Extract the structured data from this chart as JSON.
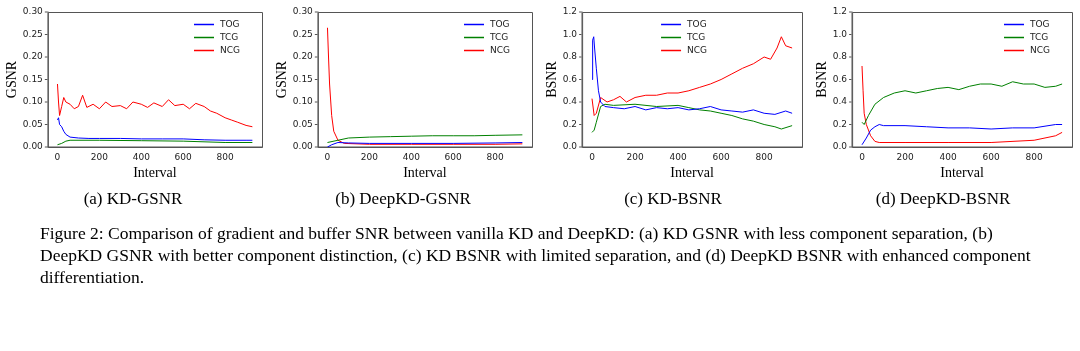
{
  "chart_data": [
    {
      "type": "line",
      "title": "(a) KD-GSNR",
      "xlabel": "Interval",
      "ylabel": "GSNR",
      "xlim": [
        -46,
        976
      ],
      "xticks": [
        0,
        200,
        400,
        600,
        800
      ],
      "ylim": [
        0,
        0.3
      ],
      "yticks": [
        {
          "value": 0,
          "label": "0.00"
        },
        {
          "value": 0.05,
          "label": "0.05"
        },
        {
          "value": 0.1,
          "label": "0.10"
        },
        {
          "value": 0.15,
          "label": "0.15"
        },
        {
          "value": 0.2,
          "label": "0.20"
        },
        {
          "value": 0.25,
          "label": "0.25"
        },
        {
          "value": 0.3,
          "label": "0.30"
        }
      ],
      "legend": "top right",
      "grid": false,
      "marker": "none",
      "line_style": "solid",
      "series": [
        {
          "name": "TOG",
          "color": "#0000ff",
          "x": [
            0,
            5,
            10,
            20,
            30,
            40,
            60,
            100,
            150,
            200,
            300,
            400,
            500,
            600,
            700,
            800,
            900,
            930
          ],
          "values": [
            0.06,
            0.065,
            0.05,
            0.045,
            0.035,
            0.028,
            0.022,
            0.02,
            0.019,
            0.019,
            0.019,
            0.018,
            0.018,
            0.018,
            0.016,
            0.015,
            0.015,
            0.015
          ]
        },
        {
          "name": "TCG",
          "color": "#008000",
          "x": [
            0,
            20,
            40,
            60,
            200,
            400,
            600,
            800,
            930
          ],
          "values": [
            0.005,
            0.008,
            0.013,
            0.015,
            0.015,
            0.014,
            0.013,
            0.01,
            0.01
          ]
        },
        {
          "name": "NCG",
          "color": "#ff0000",
          "x": [
            0,
            5,
            10,
            20,
            30,
            40,
            60,
            80,
            100,
            120,
            140,
            170,
            200,
            230,
            260,
            300,
            330,
            360,
            400,
            430,
            460,
            500,
            530,
            560,
            600,
            630,
            660,
            700,
            730,
            760,
            800,
            830,
            860,
            900,
            930
          ],
          "values": [
            0.14,
            0.1,
            0.07,
            0.09,
            0.11,
            0.1,
            0.095,
            0.085,
            0.09,
            0.115,
            0.088,
            0.095,
            0.085,
            0.1,
            0.09,
            0.092,
            0.085,
            0.1,
            0.095,
            0.088,
            0.098,
            0.09,
            0.105,
            0.092,
            0.095,
            0.085,
            0.097,
            0.09,
            0.08,
            0.075,
            0.065,
            0.06,
            0.055,
            0.048,
            0.045
          ]
        }
      ]
    },
    {
      "type": "line",
      "title": "(b) DeepKD-GSNR",
      "xlabel": "Interval",
      "ylabel": "GSNR",
      "xlim": [
        -46,
        976
      ],
      "xticks": [
        0,
        200,
        400,
        600,
        800
      ],
      "ylim": [
        0,
        0.3
      ],
      "yticks": [
        {
          "value": 0,
          "label": "0.00"
        },
        {
          "value": 0.05,
          "label": "0.05"
        },
        {
          "value": 0.1,
          "label": "0.10"
        },
        {
          "value": 0.15,
          "label": "0.15"
        },
        {
          "value": 0.2,
          "label": "0.20"
        },
        {
          "value": 0.25,
          "label": "0.25"
        },
        {
          "value": 0.3,
          "label": "0.30"
        }
      ],
      "legend": "top right",
      "grid": false,
      "marker": "none",
      "line_style": "solid",
      "series": [
        {
          "name": "TOG",
          "color": "#0000ff",
          "x": [
            0,
            20,
            50,
            100,
            200,
            400,
            600,
            800,
            930
          ],
          "values": [
            0,
            0.005,
            0.01,
            0.009,
            0.008,
            0.008,
            0.008,
            0.009,
            0.01
          ]
        },
        {
          "name": "TCG",
          "color": "#008000",
          "x": [
            0,
            50,
            100,
            200,
            300,
            400,
            500,
            600,
            700,
            800,
            930
          ],
          "values": [
            0.01,
            0.015,
            0.02,
            0.022,
            0.023,
            0.024,
            0.025,
            0.025,
            0.025,
            0.026,
            0.027
          ]
        },
        {
          "name": "NCG",
          "color": "#ff0000",
          "x": [
            0,
            5,
            10,
            20,
            30,
            50,
            80,
            200,
            400,
            600,
            800,
            930
          ],
          "values": [
            0.265,
            0.2,
            0.14,
            0.07,
            0.035,
            0.015,
            0.008,
            0.006,
            0.006,
            0.006,
            0.006,
            0.007
          ]
        }
      ]
    },
    {
      "type": "line",
      "title": "(c) KD-BSNR",
      "xlabel": "Interval",
      "ylabel": "BSNR",
      "xlim": [
        -46,
        976
      ],
      "xticks": [
        0,
        200,
        400,
        600,
        800
      ],
      "ylim": [
        0,
        1.2
      ],
      "yticks": [
        {
          "value": 0,
          "label": "0.0"
        },
        {
          "value": 0.2,
          "label": "0.2"
        },
        {
          "value": 0.4,
          "label": "0.4"
        },
        {
          "value": 0.6,
          "label": "0.6"
        },
        {
          "value": 0.8,
          "label": "0.8"
        },
        {
          "value": 1,
          "label": "1.0"
        },
        {
          "value": 1.2,
          "label": "1.2"
        }
      ],
      "legend": "top",
      "grid": false,
      "marker": "none",
      "line_style": "solid",
      "series": [
        {
          "name": "TOG",
          "color": "#0000ff",
          "x": [
            0,
            3,
            8,
            12,
            20,
            30,
            40,
            60,
            100,
            150,
            200,
            250,
            300,
            350,
            400,
            450,
            500,
            550,
            600,
            650,
            700,
            750,
            800,
            850,
            900,
            930
          ],
          "values": [
            0.6,
            0.95,
            0.98,
            0.88,
            0.7,
            0.5,
            0.4,
            0.36,
            0.35,
            0.34,
            0.36,
            0.33,
            0.35,
            0.34,
            0.35,
            0.33,
            0.34,
            0.36,
            0.33,
            0.32,
            0.31,
            0.33,
            0.3,
            0.29,
            0.32,
            0.3
          ]
        },
        {
          "name": "TCG",
          "color": "#008000",
          "x": [
            0,
            10,
            20,
            40,
            60,
            100,
            200,
            300,
            400,
            450,
            500,
            550,
            600,
            650,
            700,
            750,
            800,
            850,
            880,
            930
          ],
          "values": [
            0.13,
            0.15,
            0.22,
            0.36,
            0.38,
            0.37,
            0.38,
            0.36,
            0.37,
            0.35,
            0.33,
            0.32,
            0.3,
            0.28,
            0.25,
            0.23,
            0.2,
            0.18,
            0.16,
            0.19
          ]
        },
        {
          "name": "NCG",
          "color": "#ff0000",
          "x": [
            0,
            10,
            20,
            40,
            70,
            100,
            130,
            160,
            200,
            250,
            300,
            350,
            400,
            450,
            500,
            550,
            600,
            650,
            700,
            750,
            800,
            830,
            860,
            880,
            900,
            930
          ],
          "values": [
            0.43,
            0.28,
            0.3,
            0.44,
            0.4,
            0.42,
            0.45,
            0.4,
            0.44,
            0.46,
            0.46,
            0.48,
            0.48,
            0.5,
            0.53,
            0.56,
            0.6,
            0.65,
            0.7,
            0.74,
            0.8,
            0.78,
            0.88,
            0.98,
            0.9,
            0.88
          ]
        }
      ]
    },
    {
      "type": "line",
      "title": "(d) DeepKD-BSNR",
      "xlabel": "Interval",
      "ylabel": "BSNR",
      "xlim": [
        -46,
        976
      ],
      "xticks": [
        0,
        200,
        400,
        600,
        800
      ],
      "ylim": [
        0,
        1.2
      ],
      "yticks": [
        {
          "value": 0,
          "label": "0.0"
        },
        {
          "value": 0.2,
          "label": "0.2"
        },
        {
          "value": 0.4,
          "label": "0.4"
        },
        {
          "value": 0.6,
          "label": "0.6"
        },
        {
          "value": 0.8,
          "label": "0.8"
        },
        {
          "value": 1,
          "label": "1.0"
        },
        {
          "value": 1.2,
          "label": "1.2"
        }
      ],
      "legend": "top right",
      "grid": false,
      "marker": "none",
      "line_style": "solid",
      "annotations": [
        "Figure 2: Comparison of gradient and buffer SNR between vanilla KD and DeepKD: (a) KD GSNR with less component separation, (b) DeepKD GSNR with better component distinction, (c) KD BSNR with limited separation, and (d) DeepKD BSNR with enhanced component differentiation."
      ],
      "series": [
        {
          "name": "TOG",
          "color": "#0000ff",
          "x": [
            0,
            20,
            40,
            60,
            80,
            100,
            200,
            300,
            400,
            500,
            600,
            700,
            800,
            900,
            930
          ],
          "values": [
            0.02,
            0.08,
            0.15,
            0.18,
            0.2,
            0.19,
            0.19,
            0.18,
            0.17,
            0.17,
            0.16,
            0.17,
            0.17,
            0.2,
            0.2
          ]
        },
        {
          "name": "TCG",
          "color": "#008000",
          "x": [
            0,
            10,
            30,
            60,
            100,
            150,
            200,
            250,
            300,
            350,
            400,
            450,
            500,
            550,
            600,
            650,
            700,
            750,
            800,
            850,
            900,
            930
          ],
          "values": [
            0.22,
            0.2,
            0.28,
            0.38,
            0.44,
            0.48,
            0.5,
            0.48,
            0.5,
            0.52,
            0.53,
            0.51,
            0.54,
            0.56,
            0.56,
            0.54,
            0.58,
            0.56,
            0.56,
            0.53,
            0.54,
            0.56
          ]
        },
        {
          "name": "NCG",
          "color": "#ff0000",
          "x": [
            0,
            5,
            10,
            20,
            40,
            60,
            80,
            200,
            400,
            600,
            800,
            900,
            930
          ],
          "values": [
            0.72,
            0.5,
            0.3,
            0.2,
            0.1,
            0.05,
            0.04,
            0.04,
            0.04,
            0.04,
            0.06,
            0.1,
            0.13
          ]
        }
      ]
    }
  ]
}
